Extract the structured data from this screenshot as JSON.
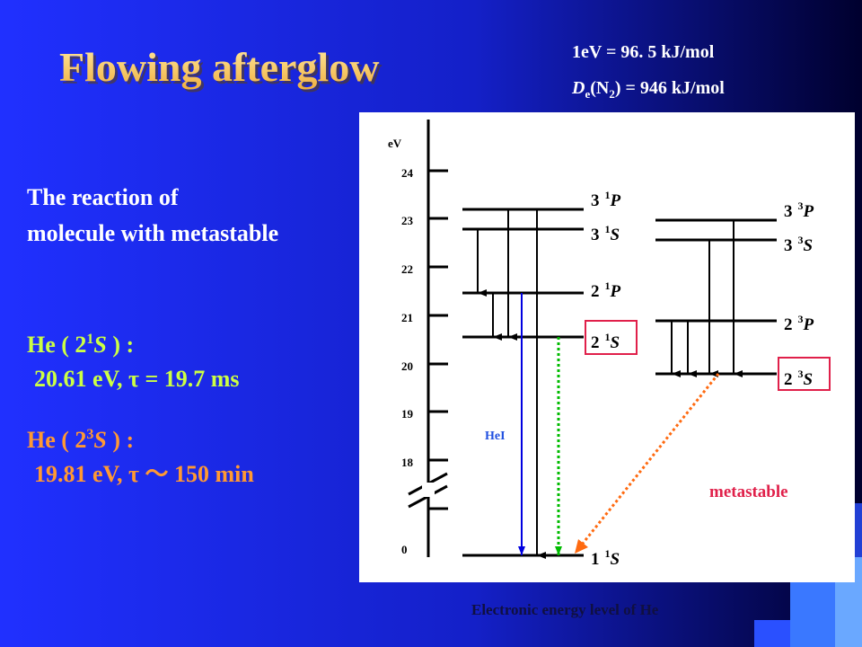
{
  "title": "Flowing afterglow",
  "conversion": "1eV = 96. 5 kJ/mol",
  "dissociation": {
    "symbol": "D",
    "symbol_sub": "e",
    "molecule": "(N",
    "molecule_sub": "2",
    "rest": ") = 946 kJ/mol"
  },
  "reaction_text": [
    "The reaction of",
    "molecule with metastable"
  ],
  "states": [
    {
      "prefix": "He ( 2",
      "sup": "1",
      "term": "S",
      "suffix": " ) :",
      "detail": "20.61 eV, τ = 19.7 ms"
    },
    {
      "prefix": "He ( 2",
      "sup": "3",
      "term": "S",
      "suffix": " ) :",
      "detail": "19.81 eV, τ ～ 150 min"
    }
  ],
  "diagram": {
    "axis_unit": "eV",
    "ticks": [
      24,
      23,
      22,
      21,
      20,
      19,
      18,
      0
    ],
    "levels": [
      {
        "n": "3",
        "mult": "1",
        "L": "P"
      },
      {
        "n": "3",
        "mult": "1",
        "L": "S"
      },
      {
        "n": "2",
        "mult": "1",
        "L": "P"
      },
      {
        "n": "2",
        "mult": "1",
        "L": "S"
      },
      {
        "n": "1",
        "mult": "1",
        "L": "S"
      },
      {
        "n": "3",
        "mult": "3",
        "L": "P"
      },
      {
        "n": "3",
        "mult": "3",
        "L": "S"
      },
      {
        "n": "2",
        "mult": "3",
        "L": "P"
      },
      {
        "n": "2",
        "mult": "3",
        "L": "S"
      }
    ],
    "transition_label": "HeI",
    "annotation": "metastable",
    "caption": "Electronic energy level of He"
  }
}
